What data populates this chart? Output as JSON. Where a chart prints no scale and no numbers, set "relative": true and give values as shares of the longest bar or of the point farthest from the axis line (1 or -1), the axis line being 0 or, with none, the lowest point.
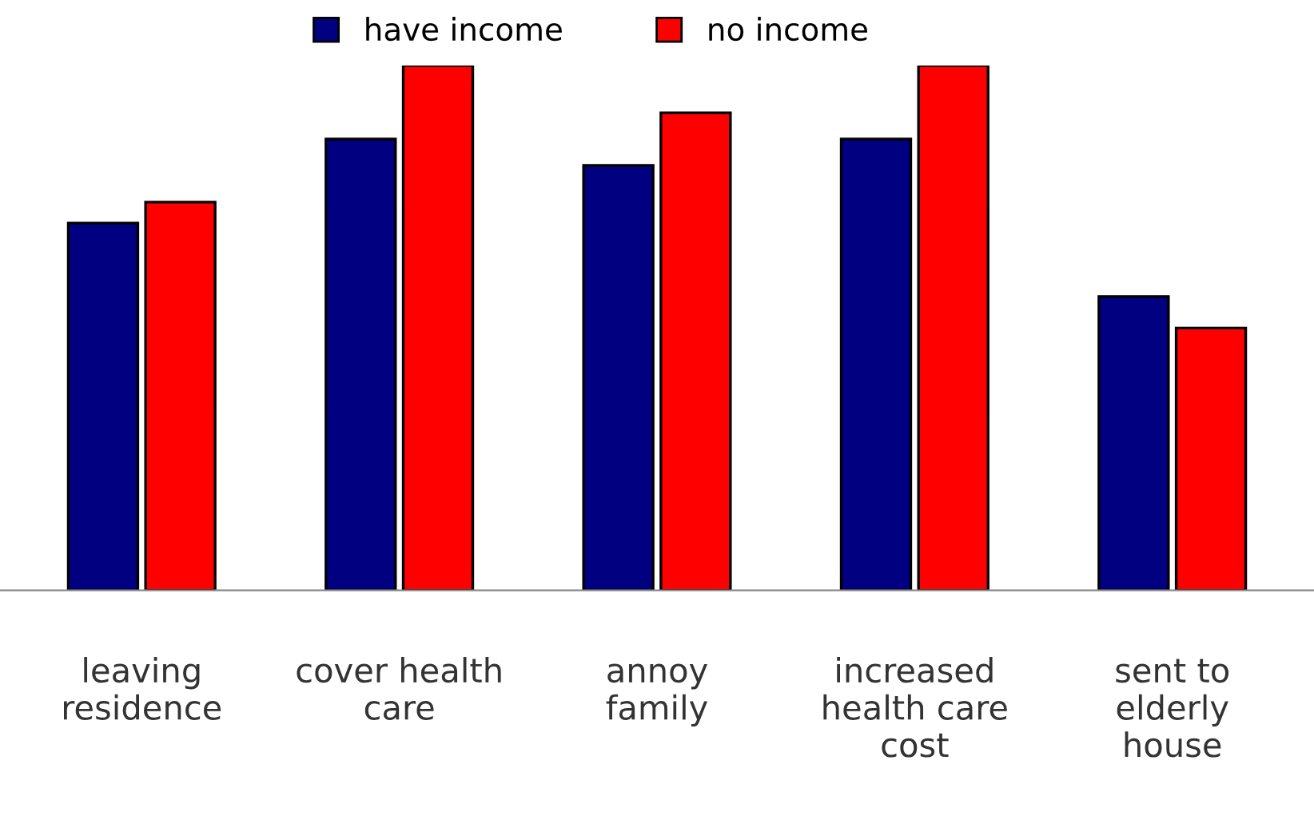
{
  "chart_data": {
    "type": "bar",
    "relative": true,
    "categories": [
      "leaving\nresidence",
      "cover health\ncare",
      "annoy\nfamily",
      "increased\nhealth care\ncost",
      "sent to\nelderly\nhouse"
    ],
    "series": [
      {
        "name": "have income",
        "color": "#000080",
        "values": [
          0.7,
          0.86,
          0.81,
          0.86,
          0.56
        ]
      },
      {
        "name": "no income",
        "color": "#ff0000",
        "values": [
          0.74,
          1,
          0.91,
          1,
          0.5
        ]
      }
    ],
    "legend": "top",
    "grid": false
  }
}
